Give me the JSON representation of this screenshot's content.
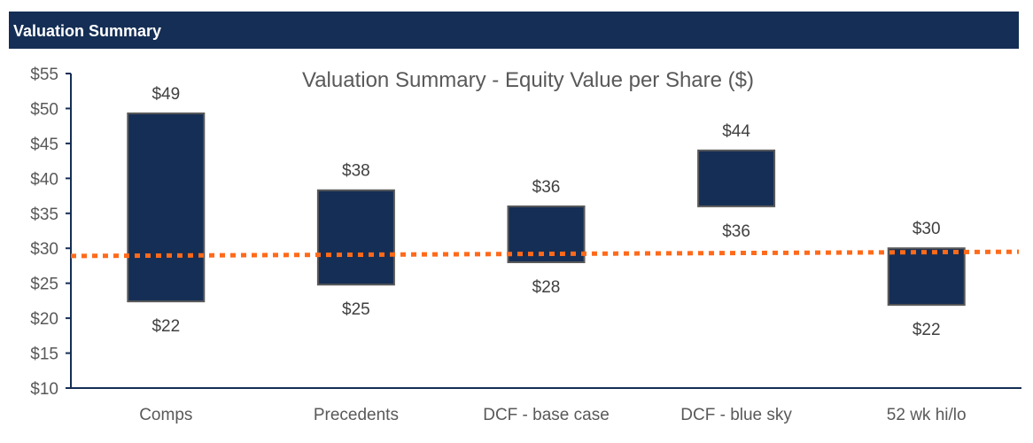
{
  "header": {
    "title": "Valuation Summary"
  },
  "chart_data": {
    "type": "bar",
    "subtype": "floating-range",
    "title": "Valuation Summary - Equity Value per Share ($)",
    "xlabel": "",
    "ylabel": "",
    "ylim": [
      10,
      55
    ],
    "y_ticks": [
      "$10",
      "$15",
      "$20",
      "$25",
      "$30",
      "$35",
      "$40",
      "$45",
      "$50",
      "$55"
    ],
    "grid": false,
    "categories": [
      "Comps",
      "Precedents",
      "DCF - base case",
      "DCF - blue sky",
      "52 wk hi/lo"
    ],
    "low": [
      22.4,
      24.8,
      28.0,
      36.0,
      21.9
    ],
    "high": [
      49.3,
      38.3,
      36.0,
      44.0,
      30.0
    ],
    "low_labels": [
      "$22",
      "$25",
      "$28",
      "$36",
      "$22"
    ],
    "high_labels": [
      "$49",
      "$38",
      "$36",
      "$44",
      "$30"
    ],
    "reference_line": {
      "style": "dotted",
      "start_value": 28.9,
      "end_value": 29.5
    },
    "colors": {
      "bar": "#152e55",
      "bar_border": "#595959",
      "reference_line": "#ff6a1a",
      "axis": "#152e55"
    }
  }
}
